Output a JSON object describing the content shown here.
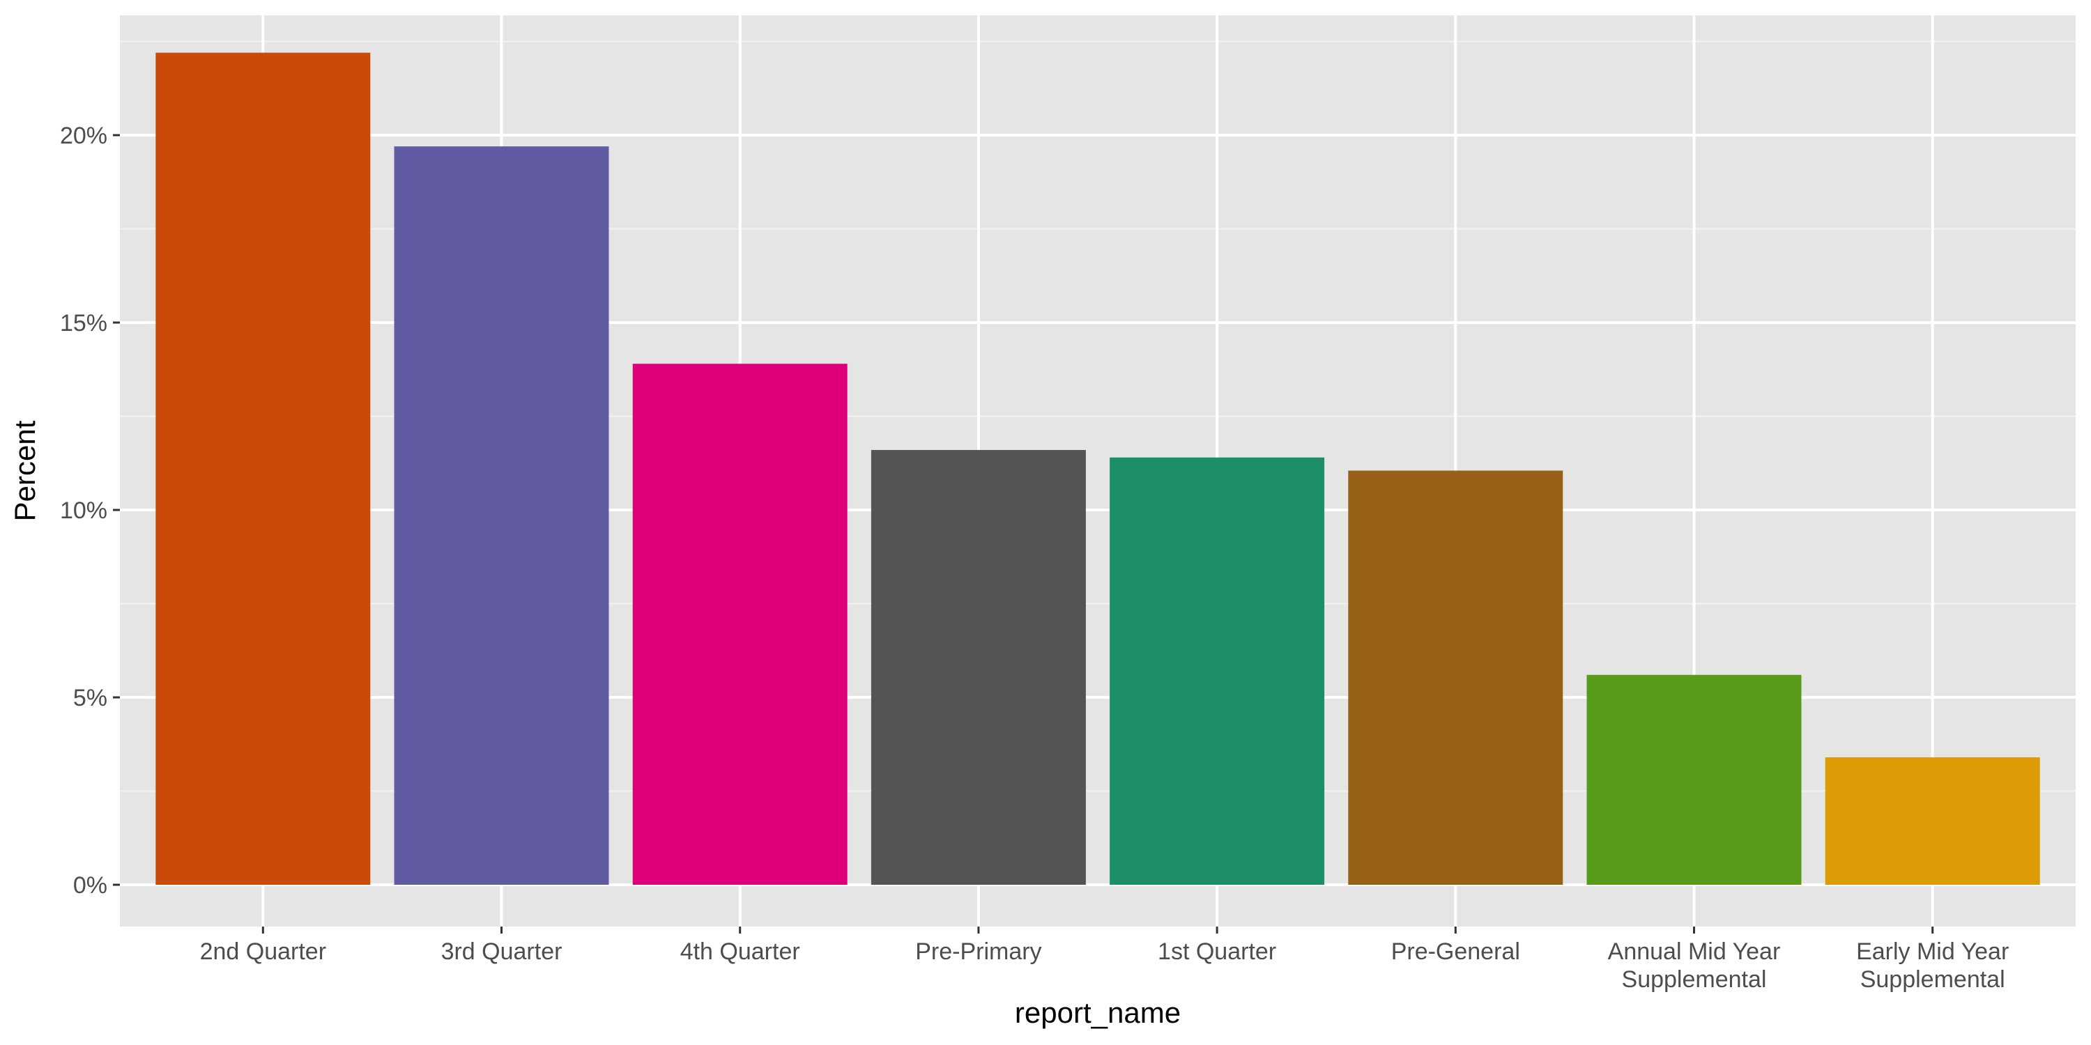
{
  "chart_data": {
    "type": "bar",
    "title": "",
    "xlabel": "report_name",
    "ylabel": "Percent",
    "categories": [
      [
        "2nd Quarter"
      ],
      [
        "3rd Quarter"
      ],
      [
        "4th Quarter"
      ],
      [
        "Pre-Primary"
      ],
      [
        "1st Quarter"
      ],
      [
        "Pre-General"
      ],
      [
        "Annual Mid Year",
        "Supplemental"
      ],
      [
        "Early Mid Year",
        "Supplemental"
      ]
    ],
    "values": [
      22.2,
      19.7,
      13.9,
      11.6,
      11.4,
      11.05,
      5.6,
      3.4
    ],
    "colors": [
      "#cc4a08",
      "#615ba4",
      "#de007a",
      "#545454",
      "#1c8f67",
      "#976218",
      "#589a19",
      "#dd9b06"
    ],
    "ylim": [
      0,
      23.3
    ],
    "y_ticks": [
      0,
      5,
      10,
      15,
      20
    ],
    "y_tick_labels": [
      "0%",
      "5%",
      "10%",
      "15%",
      "20%"
    ],
    "panel_background": "#e5e5e5",
    "grid": true,
    "legend": "none"
  }
}
